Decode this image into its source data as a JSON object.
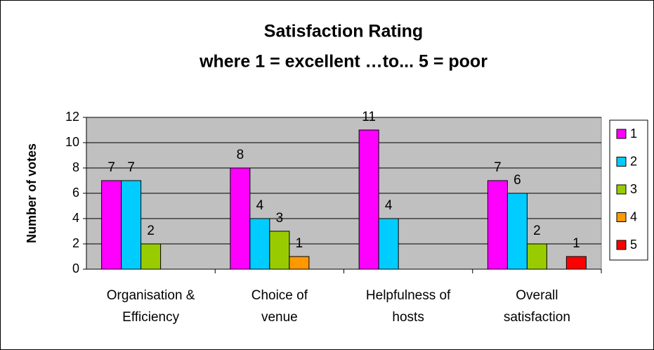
{
  "chart_data": {
    "type": "bar",
    "title": "Satisfaction Rating",
    "subtitle": "where 1 = excellent …to... 5 = poor",
    "y_label": "Number of votes",
    "categories": [
      "Organisation &\nEfficiency",
      "Choice of\nvenue",
      "Helpfulness of\nhosts",
      "Overall\nsatisfaction"
    ],
    "series": [
      {
        "name": "1",
        "color": "#ff00ff",
        "values": [
          7,
          8,
          11,
          7
        ]
      },
      {
        "name": "2",
        "color": "#00ccff",
        "values": [
          7,
          4,
          4,
          6
        ]
      },
      {
        "name": "3",
        "color": "#99cc00",
        "values": [
          2,
          3,
          null,
          2
        ]
      },
      {
        "name": "4",
        "color": "#ff9900",
        "values": [
          null,
          1,
          null,
          null
        ]
      },
      {
        "name": "5",
        "color": "#ff0000",
        "values": [
          null,
          null,
          null,
          1
        ]
      }
    ],
    "ylim": [
      0,
      12
    ],
    "yticks": [
      0,
      2,
      4,
      6,
      8,
      10,
      12
    ],
    "grid": true,
    "legend": "right",
    "plot_background": "#c0c0c0"
  }
}
